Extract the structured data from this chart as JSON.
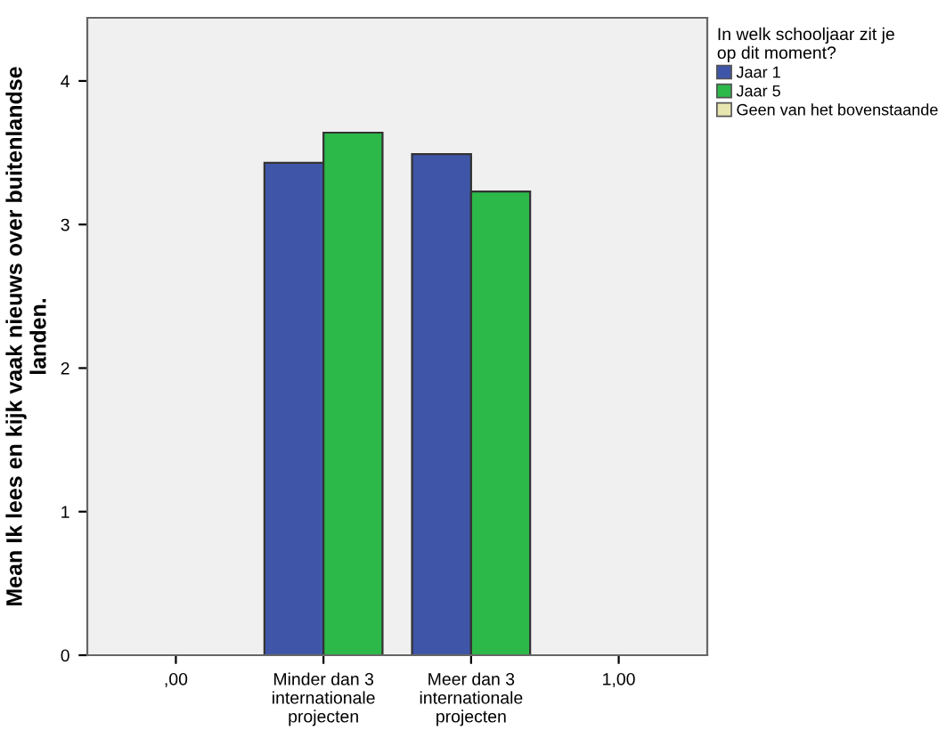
{
  "chart_data": {
    "type": "bar",
    "ylabel": "Mean Ik lees en kijk vaak nieuws over buitenlandse\nlanden.",
    "legend_title": "In welk schooljaar zit je\nop dit moment?",
    "categories": [
      ",00",
      "Minder dan 3\ninternationale\nprojecten",
      "Meer dan 3\ninternationale\nprojecten",
      "1,00"
    ],
    "series": [
      {
        "name": "Jaar 1",
        "color": "#3f56a8",
        "values": [
          null,
          3.43,
          3.49,
          null
        ]
      },
      {
        "name": "Jaar 5",
        "color": "#2db84a",
        "values": [
          null,
          3.64,
          3.23,
          null
        ]
      },
      {
        "name": "Geen van het bovenstaande",
        "color": "#e8e6b0",
        "values": [
          null,
          null,
          null,
          null
        ]
      }
    ],
    "ylim": [
      0,
      4.44
    ],
    "yticks": [
      0,
      1,
      2,
      3,
      4
    ],
    "grid": false,
    "legend": "top right"
  }
}
